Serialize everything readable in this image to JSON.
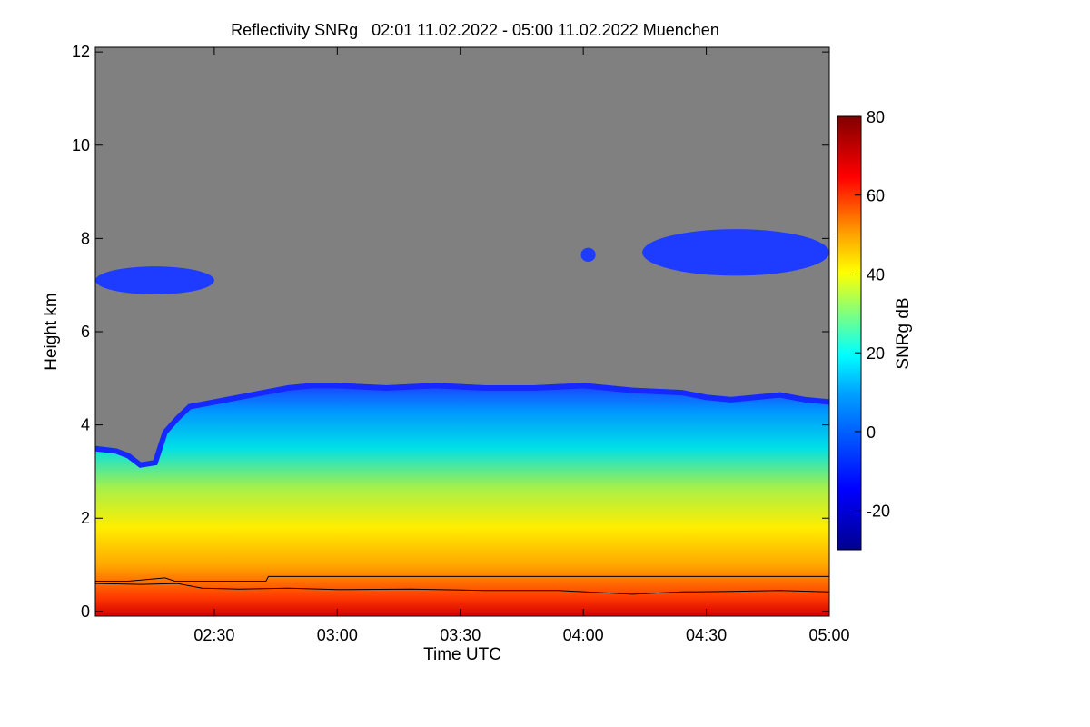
{
  "chart_data": {
    "type": "heatmap",
    "title": "Reflectivity SNRg   02:01 11.02.2022 - 05:00 11.02.2022 Muenchen",
    "xlabel": "Time UTC",
    "ylabel": "Height km",
    "colorbar_label": "SNRg dB",
    "x_ticks": [
      "02:30",
      "03:00",
      "03:30",
      "04:00",
      "04:30",
      "05:00"
    ],
    "x_tick_hours": [
      2.5,
      3.0,
      3.5,
      4.0,
      4.5,
      5.0
    ],
    "xlim_hours": [
      2.0167,
      5.0
    ],
    "y_ticks": [
      0,
      2,
      4,
      6,
      8,
      10,
      12
    ],
    "ylim_km": [
      -0.1,
      12.1
    ],
    "colorbar_ticks": [
      -20,
      0,
      20,
      40,
      60,
      80
    ],
    "colorbar_range_db": [
      -30,
      80
    ],
    "colormap": [
      "#00008f",
      "#0000ff",
      "#00ffff",
      "#ffff00",
      "#ff0000",
      "#800000"
    ],
    "no_signal_color": "#808080",
    "cloud_top_km_profile": {
      "time_hours": [
        2.0167,
        2.1,
        2.15,
        2.2,
        2.26,
        2.3,
        2.35,
        2.4,
        2.45,
        2.5,
        2.6,
        2.7,
        2.8,
        2.9,
        3.0,
        3.2,
        3.4,
        3.6,
        3.8,
        4.0,
        4.2,
        4.4,
        4.5,
        4.6,
        4.7,
        4.8,
        4.9,
        5.0
      ],
      "height_km": [
        3.55,
        3.5,
        3.4,
        3.2,
        3.25,
        3.9,
        4.2,
        4.45,
        4.5,
        4.55,
        4.65,
        4.75,
        4.85,
        4.9,
        4.9,
        4.85,
        4.9,
        4.85,
        4.85,
        4.9,
        4.8,
        4.75,
        4.65,
        4.6,
        4.65,
        4.7,
        4.6,
        4.55
      ]
    },
    "upper_cloud_layers": [
      {
        "time_start": 2.0167,
        "time_end": 2.5,
        "base_km": 6.8,
        "top_km": 7.4
      },
      {
        "time_start": 3.99,
        "time_end": 4.05,
        "base_km": 7.5,
        "top_km": 7.8
      },
      {
        "time_start": 4.24,
        "time_end": 5.0,
        "base_km": 7.2,
        "top_km": 8.2
      }
    ],
    "boundary_layer_lines": [
      {
        "time_hours": [
          2.0167,
          2.15,
          2.3,
          2.34,
          2.5,
          2.71,
          2.72,
          3.0,
          3.5,
          4.0,
          4.5,
          5.0
        ],
        "height_km": [
          0.65,
          0.65,
          0.72,
          0.65,
          0.65,
          0.65,
          0.75,
          0.75,
          0.75,
          0.75,
          0.75,
          0.75
        ]
      },
      {
        "time_hours": [
          2.0167,
          2.2,
          2.35,
          2.45,
          2.6,
          2.8,
          3.0,
          3.3,
          3.6,
          3.9,
          4.2,
          4.4,
          4.6,
          4.8,
          5.0
        ],
        "height_km": [
          0.6,
          0.58,
          0.6,
          0.5,
          0.48,
          0.5,
          0.47,
          0.48,
          0.45,
          0.45,
          0.37,
          0.42,
          0.43,
          0.45,
          0.42
        ]
      }
    ]
  }
}
